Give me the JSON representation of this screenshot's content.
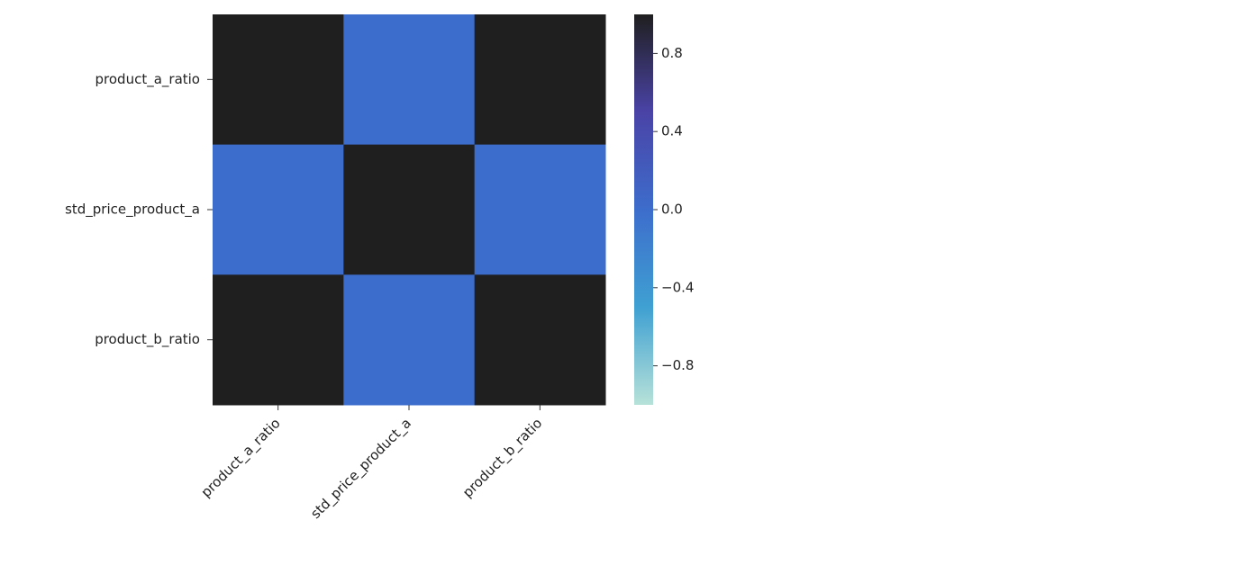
{
  "chart_data": {
    "type": "heatmap",
    "categories": [
      "product_a_ratio",
      "std_price_product_a",
      "product_b_ratio"
    ],
    "values": [
      [
        1,
        0,
        1
      ],
      [
        0,
        1,
        0
      ],
      [
        1,
        0,
        1
      ]
    ],
    "vlim": [
      -1,
      1
    ],
    "colorbar_ticks": [
      {
        "value": -0.8,
        "label": "−0.8"
      },
      {
        "value": -0.4,
        "label": "−0.4"
      },
      {
        "value": 0,
        "label": "0.0"
      },
      0.4,
      0.8
    ],
    "colors": [
      "#b7e2d9",
      "#3fa0d2",
      "#3d6dcc",
      "#4a43a6",
      "#1f1f1f"
    ]
  }
}
